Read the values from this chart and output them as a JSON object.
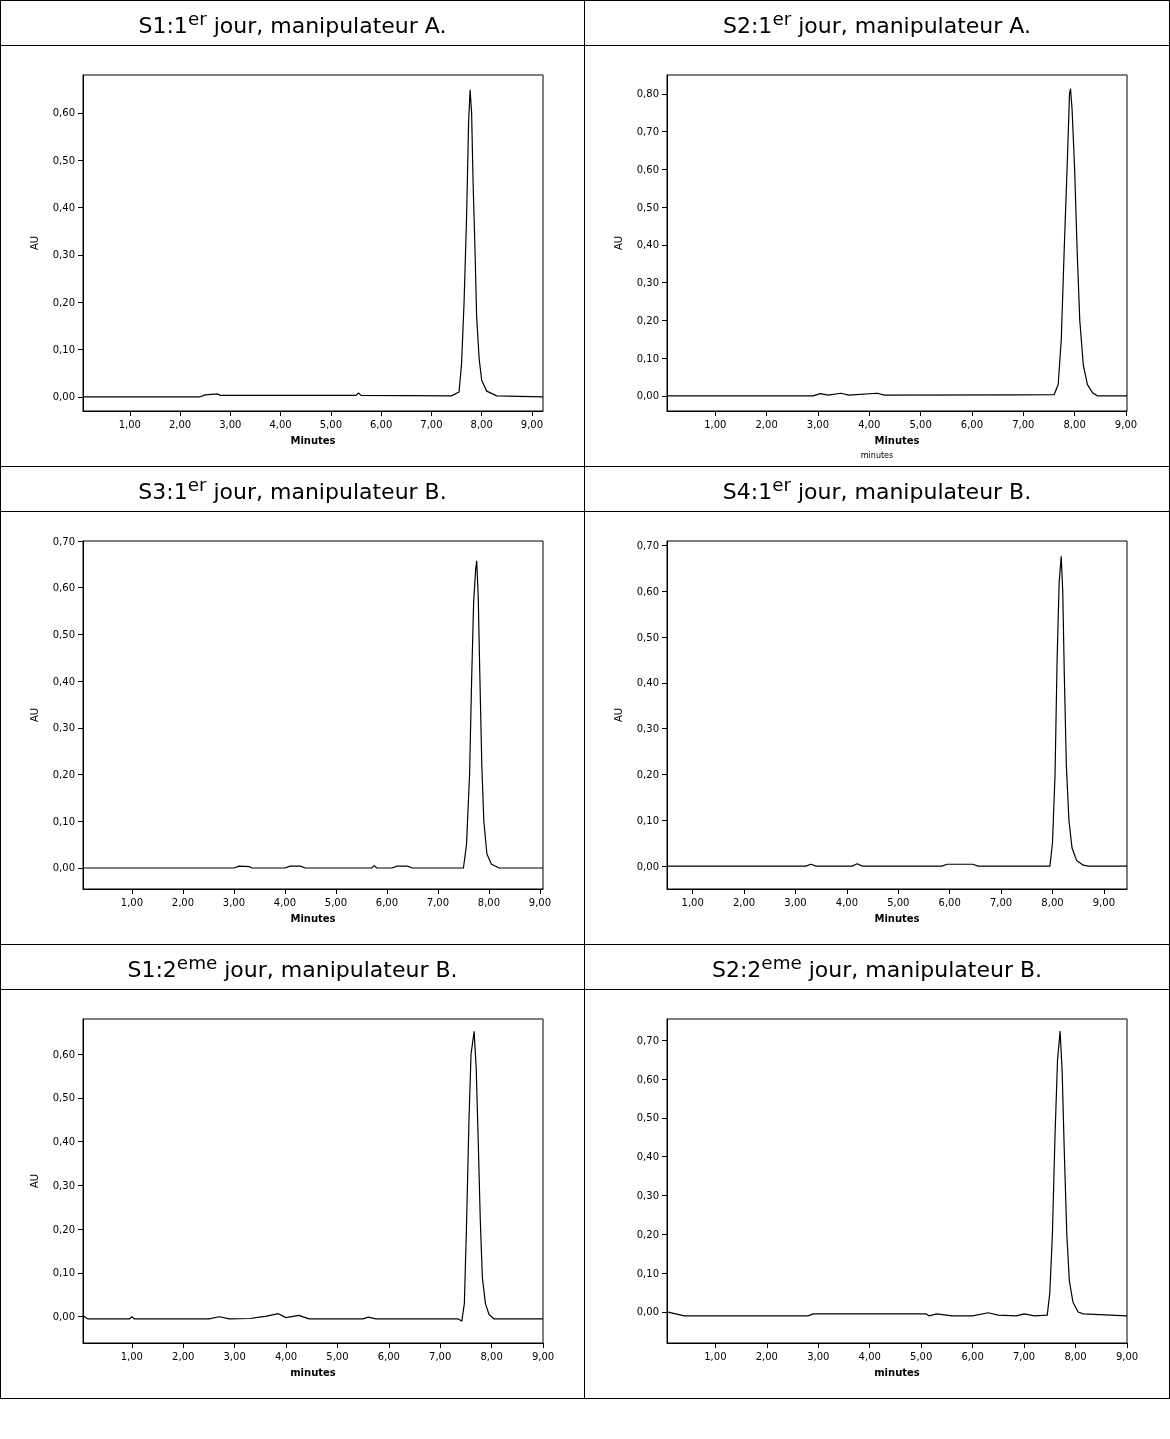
{
  "chart_data": [
    {
      "type": "line",
      "title": "S1:1$^{er}$ jour, manipulateur A.",
      "xlabel": "Minutes",
      "ylabel": "AU",
      "grid": false,
      "xlim": [
        0.07,
        9.22
      ],
      "ylim": [
        -0.03,
        0.68
      ],
      "xticks": [
        {
          "value": 1,
          "label": "1,00"
        },
        {
          "value": 2,
          "label": "2,00"
        },
        {
          "value": 3,
          "label": "3,00"
        },
        {
          "value": 4,
          "label": "4,00"
        },
        {
          "value": 5,
          "label": "5,00"
        },
        {
          "value": 6,
          "label": "6,00"
        },
        {
          "value": 7,
          "label": "7,00"
        },
        {
          "value": 8,
          "label": "8,00"
        },
        {
          "value": 9,
          "label": "9,00"
        }
      ],
      "yticks": [
        {
          "value": 0,
          "label": "0,00"
        },
        {
          "value": 0.1,
          "label": "0,10"
        },
        {
          "value": 0.2,
          "label": "0,20"
        },
        {
          "value": 0.3,
          "label": "0,30"
        },
        {
          "value": 0.4,
          "label": "0,40"
        },
        {
          "value": 0.5,
          "label": "0,50"
        },
        {
          "value": 0.6,
          "label": "0,60"
        }
      ],
      "series": [
        {
          "color": "#000000",
          "x": [
            0.07,
            2.4,
            2.5,
            2.75,
            2.8,
            5.5,
            5.55,
            5.6,
            7.4,
            7.55,
            7.6,
            7.65,
            7.7,
            7.74,
            7.77,
            7.8,
            7.83,
            7.87,
            7.9,
            7.95,
            8.0,
            8.1,
            8.3,
            9.22
          ],
          "values": [
            0,
            0,
            0.004,
            0.006,
            0.003,
            0.003,
            0.008,
            0.003,
            0.002,
            0.01,
            0.07,
            0.2,
            0.38,
            0.58,
            0.648,
            0.6,
            0.45,
            0.3,
            0.17,
            0.08,
            0.035,
            0.012,
            0.002,
            0
          ]
        }
      ]
    },
    {
      "type": "line",
      "title": "S2:1$^{er}$ jour, manipulateur A.",
      "xlabel": "Minutes",
      "ylabel": "AU",
      "grid": false,
      "annotations": [
        "minutes"
      ],
      "xlim": [
        0.06,
        9.02
      ],
      "ylim": [
        -0.04,
        0.85
      ],
      "xticks": [
        {
          "value": 1,
          "label": "1,00"
        },
        {
          "value": 2,
          "label": "2,00"
        },
        {
          "value": 3,
          "label": "3,00"
        },
        {
          "value": 4,
          "label": "4,00"
        },
        {
          "value": 5,
          "label": "5,00"
        },
        {
          "value": 6,
          "label": "6,00"
        },
        {
          "value": 7,
          "label": "7,00"
        },
        {
          "value": 8,
          "label": "8,00"
        },
        {
          "value": 9,
          "label": "9,00"
        }
      ],
      "yticks": [
        {
          "value": 0,
          "label": "0,00"
        },
        {
          "value": 0.1,
          "label": "0,10"
        },
        {
          "value": 0.2,
          "label": "0,20"
        },
        {
          "value": 0.3,
          "label": "0,30"
        },
        {
          "value": 0.4,
          "label": "0,40"
        },
        {
          "value": 0.5,
          "label": "0,50"
        },
        {
          "value": 0.6,
          "label": "0,60"
        },
        {
          "value": 0.7,
          "label": "0,70"
        },
        {
          "value": 0.8,
          "label": "0,80"
        }
      ],
      "series": [
        {
          "color": "#000000",
          "x": [
            0.06,
            2.9,
            3.05,
            3.2,
            3.45,
            3.6,
            4.15,
            4.3,
            7.6,
            7.68,
            7.74,
            7.8,
            7.86,
            7.9,
            7.92,
            7.95,
            8.0,
            8.05,
            8.1,
            8.17,
            8.25,
            8.35,
            8.45,
            9.02
          ],
          "values": [
            0,
            0,
            0.006,
            0.002,
            0.007,
            0.002,
            0.007,
            0.002,
            0.003,
            0.03,
            0.15,
            0.4,
            0.63,
            0.8,
            0.813,
            0.76,
            0.6,
            0.38,
            0.2,
            0.08,
            0.03,
            0.008,
            0,
            0
          ]
        }
      ]
    },
    {
      "type": "line",
      "title": "S3:1$^{er}$ jour, manipulateur B.",
      "xlabel": "Minutes",
      "ylabel": "AU",
      "grid": false,
      "xlim": [
        0.04,
        9.06
      ],
      "ylim": [
        -0.045,
        0.7
      ],
      "xticks": [
        {
          "value": 1,
          "label": "1,00"
        },
        {
          "value": 2,
          "label": "2,00"
        },
        {
          "value": 3,
          "label": "3,00"
        },
        {
          "value": 4,
          "label": "4,00"
        },
        {
          "value": 5,
          "label": "5,00"
        },
        {
          "value": 6,
          "label": "6,00"
        },
        {
          "value": 7,
          "label": "7,00"
        },
        {
          "value": 8,
          "label": "8,00"
        },
        {
          "value": 9,
          "label": "9,00"
        }
      ],
      "yticks": [
        {
          "value": 0,
          "label": "0,00"
        },
        {
          "value": 0.1,
          "label": "0,10"
        },
        {
          "value": 0.2,
          "label": "0,20"
        },
        {
          "value": 0.3,
          "label": "0,30"
        },
        {
          "value": 0.4,
          "label": "0,40"
        },
        {
          "value": 0.5,
          "label": "0,50"
        },
        {
          "value": 0.6,
          "label": "0,60"
        },
        {
          "value": 0.7,
          "label": "0,70"
        }
      ],
      "series": [
        {
          "color": "#000000",
          "x": [
            0.04,
            3.0,
            3.1,
            3.3,
            3.35,
            4.0,
            4.1,
            4.3,
            4.4,
            5.7,
            5.75,
            5.8,
            6.1,
            6.2,
            6.4,
            6.5,
            7.5,
            7.56,
            7.62,
            7.66,
            7.7,
            7.74,
            7.76,
            7.79,
            7.82,
            7.86,
            7.9,
            7.96,
            8.05,
            8.2,
            9.06
          ],
          "values": [
            0,
            0,
            0.004,
            0.003,
            0,
            0,
            0.004,
            0.004,
            0,
            0,
            0.005,
            0,
            0,
            0.004,
            0.004,
            0,
            0,
            0.05,
            0.2,
            0.4,
            0.57,
            0.64,
            0.657,
            0.58,
            0.42,
            0.22,
            0.1,
            0.03,
            0.008,
            0,
            0
          ]
        }
      ]
    },
    {
      "type": "line",
      "title": "S4:1$^{er}$ jour, manipulateur B.",
      "xlabel": "Minutes",
      "ylabel": "AU",
      "grid": false,
      "xlim": [
        0.5,
        9.45
      ],
      "ylim": [
        -0.05,
        0.71
      ],
      "xticks": [
        {
          "value": 1,
          "label": "1,00"
        },
        {
          "value": 2,
          "label": "2,00"
        },
        {
          "value": 3,
          "label": "3,00"
        },
        {
          "value": 4,
          "label": "4,00"
        },
        {
          "value": 5,
          "label": "5,00"
        },
        {
          "value": 6,
          "label": "6,00"
        },
        {
          "value": 7,
          "label": "7,00"
        },
        {
          "value": 8,
          "label": "8,00"
        },
        {
          "value": 9,
          "label": "9,00"
        }
      ],
      "yticks": [
        {
          "value": 0,
          "label": "0,00"
        },
        {
          "value": 0.1,
          "label": "0,10"
        },
        {
          "value": 0.2,
          "label": "0,20"
        },
        {
          "value": 0.3,
          "label": "0,30"
        },
        {
          "value": 0.4,
          "label": "0,40"
        },
        {
          "value": 0.5,
          "label": "0,50"
        },
        {
          "value": 0.6,
          "label": "0,60"
        },
        {
          "value": 0.7,
          "label": "0,70"
        }
      ],
      "series": [
        {
          "color": "#000000",
          "x": [
            0.5,
            3.2,
            3.3,
            3.4,
            4.1,
            4.2,
            4.3,
            5.85,
            5.95,
            6.45,
            6.55,
            7.95,
            8.0,
            8.05,
            8.09,
            8.13,
            8.17,
            8.2,
            8.23,
            8.27,
            8.32,
            8.38,
            8.47,
            8.6,
            8.7,
            9.45
          ],
          "values": [
            0,
            0,
            0.004,
            0,
            0,
            0.005,
            0,
            0,
            0.004,
            0.004,
            0,
            0,
            0.05,
            0.2,
            0.45,
            0.62,
            0.676,
            0.6,
            0.42,
            0.22,
            0.1,
            0.04,
            0.012,
            0.002,
            0,
            0
          ]
        }
      ]
    },
    {
      "type": "line",
      "title": "S1:2$^{eme}$ jour, manipulateur B.",
      "xlabel": "minutes",
      "ylabel": "AU",
      "grid": false,
      "xlim": [
        0.05,
        9.0
      ],
      "ylim": [
        -0.06,
        0.68
      ],
      "xticks": [
        {
          "value": 1,
          "label": "1,00"
        },
        {
          "value": 2,
          "label": "2,00"
        },
        {
          "value": 3,
          "label": "3,00"
        },
        {
          "value": 4,
          "label": "4,00"
        },
        {
          "value": 5,
          "label": "5,00"
        },
        {
          "value": 6,
          "label": "6,00"
        },
        {
          "value": 7,
          "label": "7,00"
        },
        {
          "value": 8,
          "label": "8,00"
        },
        {
          "value": 9,
          "label": "9,00"
        }
      ],
      "yticks": [
        {
          "value": 0,
          "label": "0,00"
        },
        {
          "value": 0.1,
          "label": "0,10"
        },
        {
          "value": 0.2,
          "label": "0,20"
        },
        {
          "value": 0.3,
          "label": "0,30"
        },
        {
          "value": 0.4,
          "label": "0,40"
        },
        {
          "value": 0.5,
          "label": "0,50"
        },
        {
          "value": 0.6,
          "label": "0,60"
        }
      ],
      "series": [
        {
          "color": "#000000",
          "x": [
            0.05,
            0.15,
            0.95,
            1.0,
            1.05,
            2.5,
            2.7,
            2.9,
            3.3,
            3.6,
            3.85,
            4.0,
            4.25,
            4.45,
            5.5,
            5.6,
            5.75,
            7.35,
            7.42,
            7.47,
            7.51,
            7.56,
            7.6,
            7.66,
            7.7,
            7.74,
            7.78,
            7.82,
            7.88,
            7.95,
            8.05,
            9.0
          ],
          "values": [
            0.002,
            -0.005,
            -0.005,
            0,
            -0.005,
            -0.005,
            0,
            -0.005,
            -0.004,
            0.001,
            0.007,
            -0.002,
            0.003,
            -0.005,
            -0.005,
            -0.001,
            -0.005,
            -0.005,
            -0.01,
            0.03,
            0.2,
            0.45,
            0.6,
            0.651,
            0.57,
            0.4,
            0.22,
            0.09,
            0.03,
            0.005,
            -0.005,
            -0.005
          ]
        }
      ]
    },
    {
      "type": "line",
      "title": "S2:2$^{eme}$ jour, manipulateur B.",
      "xlabel": "minutes",
      "grid": false,
      "xlim": [
        0.06,
        9.0
      ],
      "ylim": [
        -0.08,
        0.755
      ],
      "xticks": [
        {
          "value": 1,
          "label": "1,00"
        },
        {
          "value": 2,
          "label": "2,00"
        },
        {
          "value": 3,
          "label": "3,00"
        },
        {
          "value": 4,
          "label": "4,00"
        },
        {
          "value": 5,
          "label": "5,00"
        },
        {
          "value": 6,
          "label": "6,00"
        },
        {
          "value": 7,
          "label": "7,00"
        },
        {
          "value": 8,
          "label": "8,00"
        },
        {
          "value": 9,
          "label": "9,00"
        }
      ],
      "yticks": [
        {
          "value": 0,
          "label": "0,00"
        },
        {
          "value": 0.1,
          "label": "0,10"
        },
        {
          "value": 0.2,
          "label": "0,20"
        },
        {
          "value": 0.3,
          "label": "0,30"
        },
        {
          "value": 0.4,
          "label": "0,40"
        },
        {
          "value": 0.5,
          "label": "0,50"
        },
        {
          "value": 0.6,
          "label": "0,60"
        },
        {
          "value": 0.7,
          "label": "0,70"
        }
      ],
      "series": [
        {
          "color": "#000000",
          "x": [
            0.06,
            0.4,
            2.8,
            2.9,
            5.1,
            5.15,
            5.3,
            5.6,
            6.0,
            6.3,
            6.5,
            6.85,
            7.0,
            7.2,
            7.45,
            7.5,
            7.55,
            7.6,
            7.65,
            7.7,
            7.74,
            7.78,
            7.83,
            7.88,
            7.95,
            8.05,
            8.15,
            9.0
          ],
          "values": [
            0,
            -0.01,
            -0.01,
            -0.005,
            -0.005,
            -0.01,
            -0.005,
            -0.01,
            -0.01,
            -0.002,
            -0.008,
            -0.01,
            -0.005,
            -0.01,
            -0.008,
            0.05,
            0.2,
            0.45,
            0.65,
            0.723,
            0.62,
            0.42,
            0.2,
            0.08,
            0.025,
            0,
            -0.005,
            -0.01
          ]
        }
      ]
    }
  ]
}
